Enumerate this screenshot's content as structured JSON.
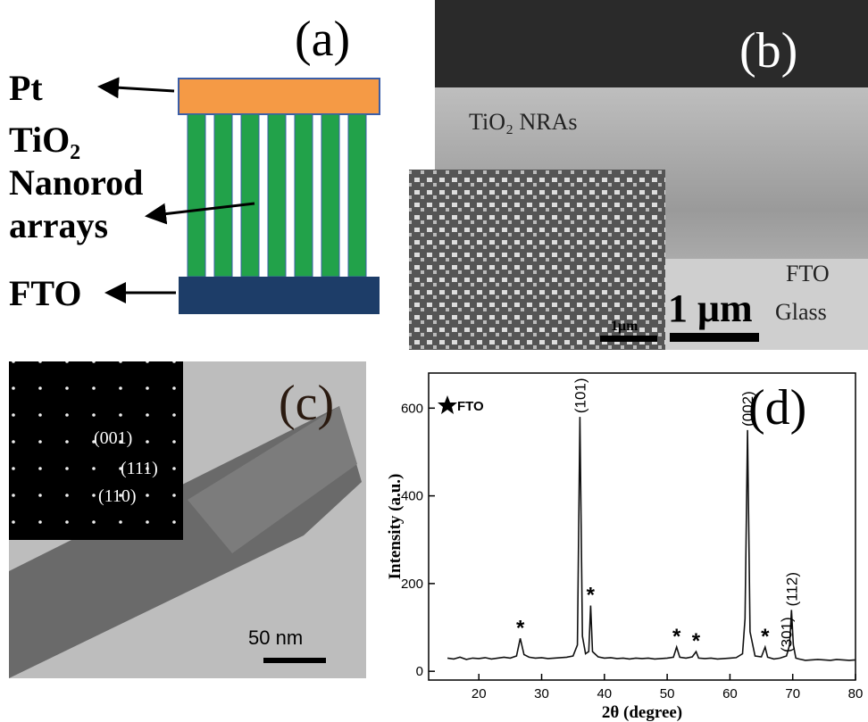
{
  "panel_a": {
    "label": "(a)",
    "top_layer": "Pt",
    "middle_layer": [
      "TiO₂",
      "Nanorod",
      "arrays"
    ],
    "bottom_layer": "FTO"
  },
  "panel_b": {
    "label": "(b)",
    "nanorods": "TiO₂ NRAs",
    "substrate": [
      "FTO",
      "Glass"
    ],
    "scale_bar": "1 μm",
    "inset_scale_bar": "1μm"
  },
  "panel_c": {
    "label": "(c)",
    "diffraction_spots": [
      "(001)",
      "(111)",
      "(110)"
    ],
    "scale_bar": "50 nm"
  },
  "chart_data": {
    "type": "line",
    "panel_label": "(d)",
    "xlabel": "2θ (degree)",
    "ylabel": "Intensity (a.u.)",
    "color": "#111111",
    "legend_label": "FTO",
    "x": [
      15,
      16,
      17,
      18,
      19,
      20,
      21,
      22,
      23,
      24,
      25,
      26,
      26.6,
      27.2,
      28,
      29,
      30,
      31,
      32,
      33,
      34,
      35,
      35.7,
      36.1,
      36.5,
      37,
      37.5,
      37.8,
      38.1,
      39,
      40,
      41,
      42,
      43,
      44,
      45,
      46,
      47,
      48,
      49,
      50,
      51,
      51.5,
      52,
      53,
      54,
      54.6,
      55,
      56,
      57,
      58,
      59,
      60,
      61,
      62,
      62.4,
      62.8,
      63.2,
      64,
      65,
      65.6,
      66,
      67,
      68,
      69,
      69.5,
      69.8,
      70.1,
      70.5,
      71,
      72,
      73,
      74,
      75,
      76,
      77,
      78,
      79,
      80
    ],
    "values": [
      30,
      28,
      32,
      27,
      30,
      29,
      31,
      28,
      30,
      32,
      30,
      35,
      75,
      38,
      32,
      30,
      31,
      29,
      30,
      31,
      32,
      35,
      60,
      580,
      80,
      40,
      45,
      150,
      45,
      33,
      30,
      31,
      29,
      30,
      28,
      30,
      29,
      30,
      28,
      29,
      30,
      32,
      55,
      32,
      30,
      33,
      45,
      30,
      29,
      30,
      28,
      29,
      30,
      31,
      40,
      120,
      550,
      90,
      35,
      33,
      55,
      32,
      28,
      30,
      35,
      60,
      140,
      60,
      30,
      28,
      25,
      26,
      27,
      26,
      25,
      27,
      26,
      25,
      26
    ],
    "xlim": [
      12,
      80
    ],
    "ylim": [
      -20,
      680
    ],
    "xticks": [
      20,
      30,
      40,
      50,
      60,
      70,
      80
    ],
    "yticks": [
      0,
      200,
      400,
      600
    ],
    "peak_labels": [
      {
        "text": "(101)",
        "x": 36.1
      },
      {
        "text": "(002)",
        "x": 62.8
      },
      {
        "text": "(301)",
        "x": 69
      },
      {
        "text": "(112)",
        "x": 69.8
      }
    ],
    "fto_marks": [
      {
        "text": "*",
        "x": 26.6
      },
      {
        "text": "*",
        "x": 37.8
      },
      {
        "text": "*",
        "x": 51.5
      },
      {
        "text": "*",
        "x": 54.6
      },
      {
        "text": "*",
        "x": 65.6
      }
    ]
  }
}
